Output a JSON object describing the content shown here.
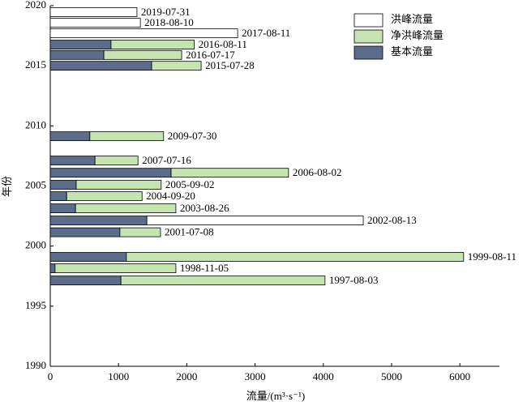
{
  "chart_data": {
    "type": "stacked-barh",
    "x_label": "流量/(m³·s⁻¹)",
    "y_label": "年份",
    "xlim": [
      0,
      6580
    ],
    "xticks": [
      0,
      1000,
      2000,
      3000,
      4000,
      5000,
      6000
    ],
    "ylim": [
      1990,
      2020
    ],
    "yticks": [
      1990,
      1995,
      2000,
      2005,
      2010,
      2015,
      2020
    ],
    "y": [
      2019.46,
      2018.58,
      2017.7,
      2016.76,
      2015.9,
      2015.0,
      2009.14,
      2007.12,
      2006.1,
      2005.1,
      2004.15,
      2003.14,
      2002.13,
      2001.15,
      1999.1,
      1998.15,
      1997.14
    ],
    "labels": [
      "2019-07-31",
      "2018-08-10",
      "2017-08-11",
      "2016-08-11",
      "2016-07-17",
      "2015-07-28",
      "2009-07-30",
      "2007-07-16",
      "2006-08-02",
      "2005-09-02",
      "2004-09-20",
      "2003-08-26",
      "2002-08-13",
      "2001-07-08",
      "1999-08-11",
      "1998-11-05",
      "1997-08-03"
    ],
    "series": [
      {
        "name": "洪峰流量",
        "color": "#ffffff",
        "values": [
          1270,
          1320,
          2745,
          null,
          null,
          null,
          null,
          null,
          null,
          null,
          null,
          null,
          3170,
          null,
          null,
          null,
          null
        ]
      },
      {
        "name": "净洪峰流量",
        "color": "#c6e4b0",
        "values": [
          null,
          null,
          null,
          1220,
          1140,
          725,
          1080,
          630,
          1720,
          1245,
          1105,
          1470,
          null,
          595,
          4940,
          1770,
          2990
        ]
      },
      {
        "name": "基本流量",
        "color": "#5b6d8a",
        "values": [
          null,
          null,
          null,
          890,
          785,
          1485,
          580,
          655,
          1770,
          380,
          240,
          370,
          1415,
          1020,
          1115,
          70,
          1035
        ]
      }
    ],
    "legend": "upper right"
  }
}
